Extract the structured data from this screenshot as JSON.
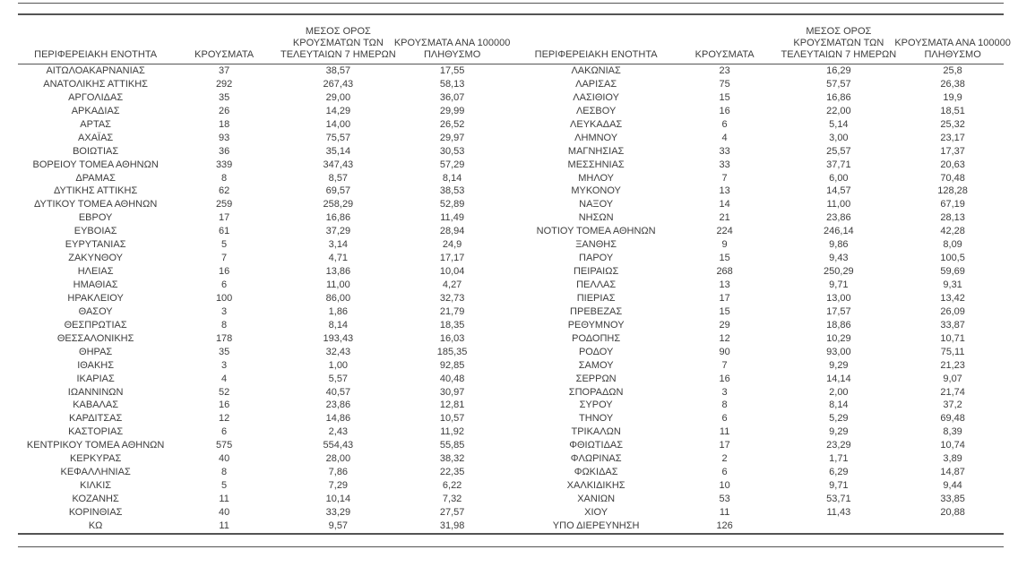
{
  "page": {
    "background_color": "#ffffff",
    "text_color": "#3d3d3d",
    "line_color": "#545454",
    "description": "Greek regional COVID-19 cases table, two side-by-side halves"
  },
  "table": {
    "column_headers": [
      {
        "id": "region",
        "lines": [
          "ΠΕΡΙΦΕΡΕΙΑΚΗ ΕΝΟΤΗΤΑ"
        ]
      },
      {
        "id": "cases",
        "lines": [
          "ΚΡΟΥΣΜΑΤΑ"
        ]
      },
      {
        "id": "avg7day",
        "lines": [
          "ΜΕΣΟΣ ΟΡΟΣ",
          "ΚΡΟΥΣΜΑΤΩΝ ΤΩΝ",
          "ΤΕΛΕΥΤΑΙΩΝ 7 ΗΜΕΡΩΝ"
        ]
      },
      {
        "id": "per100k",
        "lines": [
          "ΚΡΟΥΣΜΑΤΑ ΑΝΑ 100000",
          "ΠΛΗΘΥΣΜΟ"
        ]
      }
    ],
    "left_rows": [
      [
        "ΑΙΤΩΛΟΑΚΑΡΝΑΝΙΑΣ",
        "37",
        "38,57",
        "17,55"
      ],
      [
        "ΑΝΑΤΟΛΙΚΗΣ ΑΤΤΙΚΗΣ",
        "292",
        "267,43",
        "58,13"
      ],
      [
        "ΑΡΓΟΛΙΔΑΣ",
        "35",
        "29,00",
        "36,07"
      ],
      [
        "ΑΡΚΑΔΙΑΣ",
        "26",
        "14,29",
        "29,99"
      ],
      [
        "ΑΡΤΑΣ",
        "18",
        "14,00",
        "26,52"
      ],
      [
        "ΑΧΑΪΑΣ",
        "93",
        "75,57",
        "29,97"
      ],
      [
        "ΒΟΙΩΤΙΑΣ",
        "36",
        "35,14",
        "30,53"
      ],
      [
        "ΒΟΡΕΙΟΥ ΤΟΜΕΑ ΑΘΗΝΩΝ",
        "339",
        "347,43",
        "57,29"
      ],
      [
        "ΔΡΑΜΑΣ",
        "8",
        "8,57",
        "8,14"
      ],
      [
        "ΔΥΤΙΚΗΣ ΑΤΤΙΚΗΣ",
        "62",
        "69,57",
        "38,53"
      ],
      [
        "ΔΥΤΙΚΟΥ ΤΟΜΕΑ ΑΘΗΝΩΝ",
        "259",
        "258,29",
        "52,89"
      ],
      [
        "ΕΒΡΟΥ",
        "17",
        "16,86",
        "11,49"
      ],
      [
        "ΕΥΒΟΙΑΣ",
        "61",
        "37,29",
        "28,94"
      ],
      [
        "ΕΥΡΥΤΑΝΙΑΣ",
        "5",
        "3,14",
        "24,9"
      ],
      [
        "ΖΑΚΥΝΘΟΥ",
        "7",
        "4,71",
        "17,17"
      ],
      [
        "ΗΛΕΙΑΣ",
        "16",
        "13,86",
        "10,04"
      ],
      [
        "ΗΜΑΘΙΑΣ",
        "6",
        "11,00",
        "4,27"
      ],
      [
        "ΗΡΑΚΛΕΙΟΥ",
        "100",
        "86,00",
        "32,73"
      ],
      [
        "ΘΑΣΟΥ",
        "3",
        "1,86",
        "21,79"
      ],
      [
        "ΘΕΣΠΡΩΤΙΑΣ",
        "8",
        "8,14",
        "18,35"
      ],
      [
        "ΘΕΣΣΑΛΟΝΙΚΗΣ",
        "178",
        "193,43",
        "16,03"
      ],
      [
        "ΘΗΡΑΣ",
        "35",
        "32,43",
        "185,35"
      ],
      [
        "ΙΘΑΚΗΣ",
        "3",
        "1,00",
        "92,85"
      ],
      [
        "ΙΚΑΡΙΑΣ",
        "4",
        "5,57",
        "40,48"
      ],
      [
        "ΙΩΑΝΝΙΝΩΝ",
        "52",
        "40,57",
        "30,97"
      ],
      [
        "ΚΑΒΑΛΑΣ",
        "16",
        "23,86",
        "12,81"
      ],
      [
        "ΚΑΡΔΙΤΣΑΣ",
        "12",
        "14,86",
        "10,57"
      ],
      [
        "ΚΑΣΤΟΡΙΑΣ",
        "6",
        "2,43",
        "11,92"
      ],
      [
        "ΚΕΝΤΡΙΚΟΥ ΤΟΜΕΑ ΑΘΗΝΩΝ",
        "575",
        "554,43",
        "55,85"
      ],
      [
        "ΚΕΡΚΥΡΑΣ",
        "40",
        "28,00",
        "38,32"
      ],
      [
        "ΚΕΦΑΛΛΗΝΙΑΣ",
        "8",
        "7,86",
        "22,35"
      ],
      [
        "ΚΙΛΚΙΣ",
        "5",
        "7,29",
        "6,22"
      ],
      [
        "ΚΟΖΑΝΗΣ",
        "11",
        "10,14",
        "7,32"
      ],
      [
        "ΚΟΡΙΝΘΙΑΣ",
        "40",
        "33,29",
        "27,57"
      ],
      [
        "ΚΩ",
        "11",
        "9,57",
        "31,98"
      ]
    ],
    "right_rows": [
      [
        "ΛΑΚΩΝΙΑΣ",
        "23",
        "16,29",
        "25,8"
      ],
      [
        "ΛΑΡΙΣΑΣ",
        "75",
        "57,57",
        "26,38"
      ],
      [
        "ΛΑΣΙΘΙΟΥ",
        "15",
        "16,86",
        "19,9"
      ],
      [
        "ΛΕΣΒΟΥ",
        "16",
        "22,00",
        "18,51"
      ],
      [
        "ΛΕΥΚΑΔΑΣ",
        "6",
        "5,14",
        "25,32"
      ],
      [
        "ΛΗΜΝΟΥ",
        "4",
        "3,00",
        "23,17"
      ],
      [
        "ΜΑΓΝΗΣΙΑΣ",
        "33",
        "25,57",
        "17,37"
      ],
      [
        "ΜΕΣΣΗΝΙΑΣ",
        "33",
        "37,71",
        "20,63"
      ],
      [
        "ΜΗΛΟΥ",
        "7",
        "6,00",
        "70,48"
      ],
      [
        "ΜΥΚΟΝΟΥ",
        "13",
        "14,57",
        "128,28"
      ],
      [
        "ΝΑΞΟΥ",
        "14",
        "11,00",
        "67,19"
      ],
      [
        "ΝΗΣΩΝ",
        "21",
        "23,86",
        "28,13"
      ],
      [
        "ΝΟΤΙΟΥ ΤΟΜΕΑ ΑΘΗΝΩΝ",
        "224",
        "246,14",
        "42,28"
      ],
      [
        "ΞΑΝΘΗΣ",
        "9",
        "9,86",
        "8,09"
      ],
      [
        "ΠΑΡΟΥ",
        "15",
        "9,43",
        "100,5"
      ],
      [
        "ΠΕΙΡΑΙΩΣ",
        "268",
        "250,29",
        "59,69"
      ],
      [
        "ΠΕΛΛΑΣ",
        "13",
        "9,71",
        "9,31"
      ],
      [
        "ΠΙΕΡΙΑΣ",
        "17",
        "13,00",
        "13,42"
      ],
      [
        "ΠΡΕΒΕΖΑΣ",
        "15",
        "17,57",
        "26,09"
      ],
      [
        "ΡΕΘΥΜΝΟΥ",
        "29",
        "18,86",
        "33,87"
      ],
      [
        "ΡΟΔΟΠΗΣ",
        "12",
        "10,29",
        "10,71"
      ],
      [
        "ΡΟΔΟΥ",
        "90",
        "93,00",
        "75,11"
      ],
      [
        "ΣΑΜΟΥ",
        "7",
        "9,29",
        "21,23"
      ],
      [
        "ΣΕΡΡΩΝ",
        "16",
        "14,14",
        "9,07"
      ],
      [
        "ΣΠΟΡΑΔΩΝ",
        "3",
        "2,00",
        "21,74"
      ],
      [
        "ΣΥΡΟΥ",
        "8",
        "8,14",
        "37,2"
      ],
      [
        "ΤΗΝΟΥ",
        "6",
        "5,29",
        "69,48"
      ],
      [
        "ΤΡΙΚΑΛΩΝ",
        "11",
        "9,29",
        "8,39"
      ],
      [
        "ΦΘΙΩΤΙΔΑΣ",
        "17",
        "23,29",
        "10,74"
      ],
      [
        "ΦΛΩΡΙΝΑΣ",
        "2",
        "1,71",
        "3,89"
      ],
      [
        "ΦΩΚΙΔΑΣ",
        "6",
        "6,29",
        "14,87"
      ],
      [
        "ΧΑΛΚΙΔΙΚΗΣ",
        "10",
        "9,71",
        "9,44"
      ],
      [
        "ΧΑΝΙΩΝ",
        "53",
        "53,71",
        "33,85"
      ],
      [
        "ΧΙΟΥ",
        "11",
        "11,43",
        "20,88"
      ],
      [
        "ΥΠΟ ΔΙΕΡΕΥΝΗΣΗ",
        "126",
        "",
        ""
      ]
    ]
  }
}
